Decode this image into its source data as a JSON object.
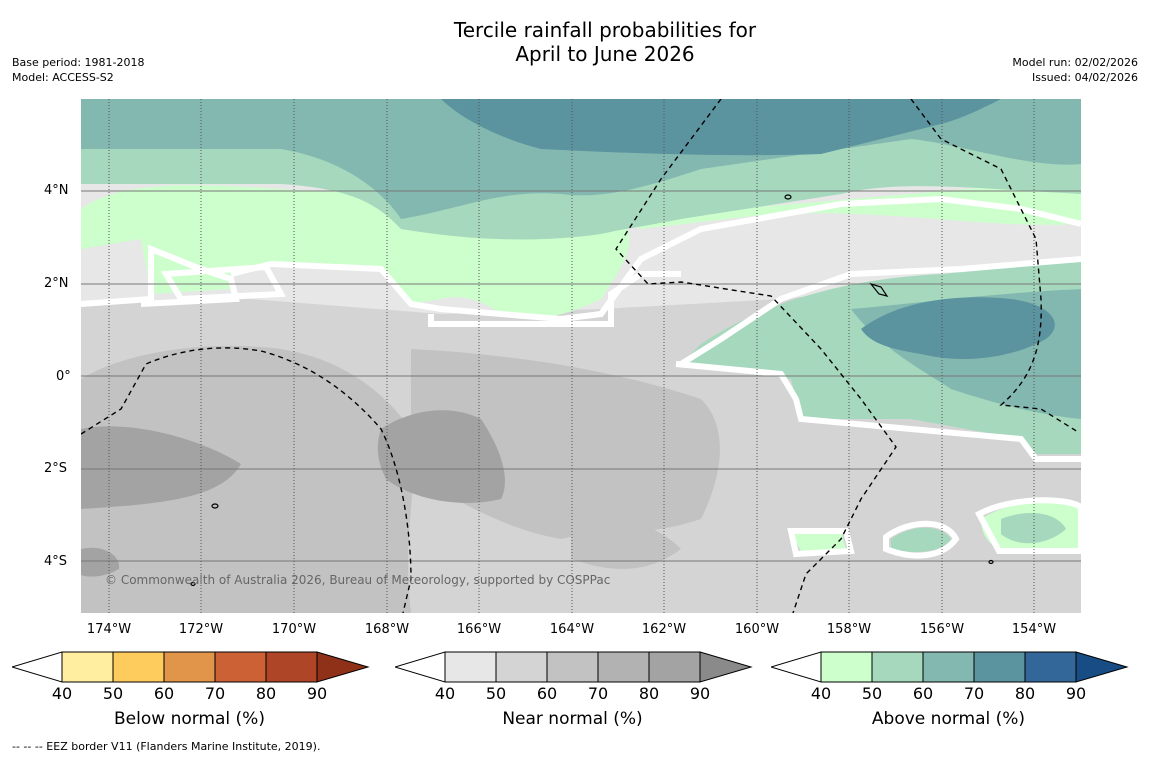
{
  "title": {
    "line1": "Tercile rainfall probabilities for",
    "line2": "April to June 2026"
  },
  "meta": {
    "base_period": "Base period: 1981-2018",
    "model": "Model: ACCESS-S2",
    "model_run": "Model run: 02/02/2026",
    "issued": "Issued: 04/02/2026"
  },
  "map": {
    "lat_labels": [
      "4°N",
      "2°N",
      "0°",
      "2°S",
      "4°S"
    ],
    "lon_labels": [
      "174°W",
      "172°W",
      "170°W",
      "168°W",
      "166°W",
      "164°W",
      "162°W",
      "160°W",
      "158°W",
      "156°W",
      "154°W"
    ],
    "copyright": "© Commonwealth of Australia 2026, Bureau of Meteorology, supported by COSPPac"
  },
  "colorbars": [
    {
      "title": "Below normal (%)",
      "ticks": [
        "40",
        "50",
        "60",
        "70",
        "80",
        "90"
      ],
      "colors": [
        "#ffeda0",
        "#fecc5c",
        "#e1954a",
        "#cc6136",
        "#ae4526",
        "#8f3118"
      ]
    },
    {
      "title": "Near normal (%)",
      "ticks": [
        "40",
        "50",
        "60",
        "70",
        "80",
        "90"
      ],
      "colors": [
        "#e7e7e7",
        "#d4d4d4",
        "#c2c2c2",
        "#b2b2b2",
        "#a3a3a3",
        "#8a8a8a"
      ]
    },
    {
      "title": "Above normal (%)",
      "ticks": [
        "40",
        "50",
        "60",
        "70",
        "80",
        "90"
      ],
      "colors": [
        "#ccffcc",
        "#a5d8bd",
        "#83b8b0",
        "#5b939f",
        "#336799",
        "#174c85"
      ]
    }
  ],
  "footer": "--  --  -- EEZ border V11 (Flanders Marine Institute, 2019)."
}
